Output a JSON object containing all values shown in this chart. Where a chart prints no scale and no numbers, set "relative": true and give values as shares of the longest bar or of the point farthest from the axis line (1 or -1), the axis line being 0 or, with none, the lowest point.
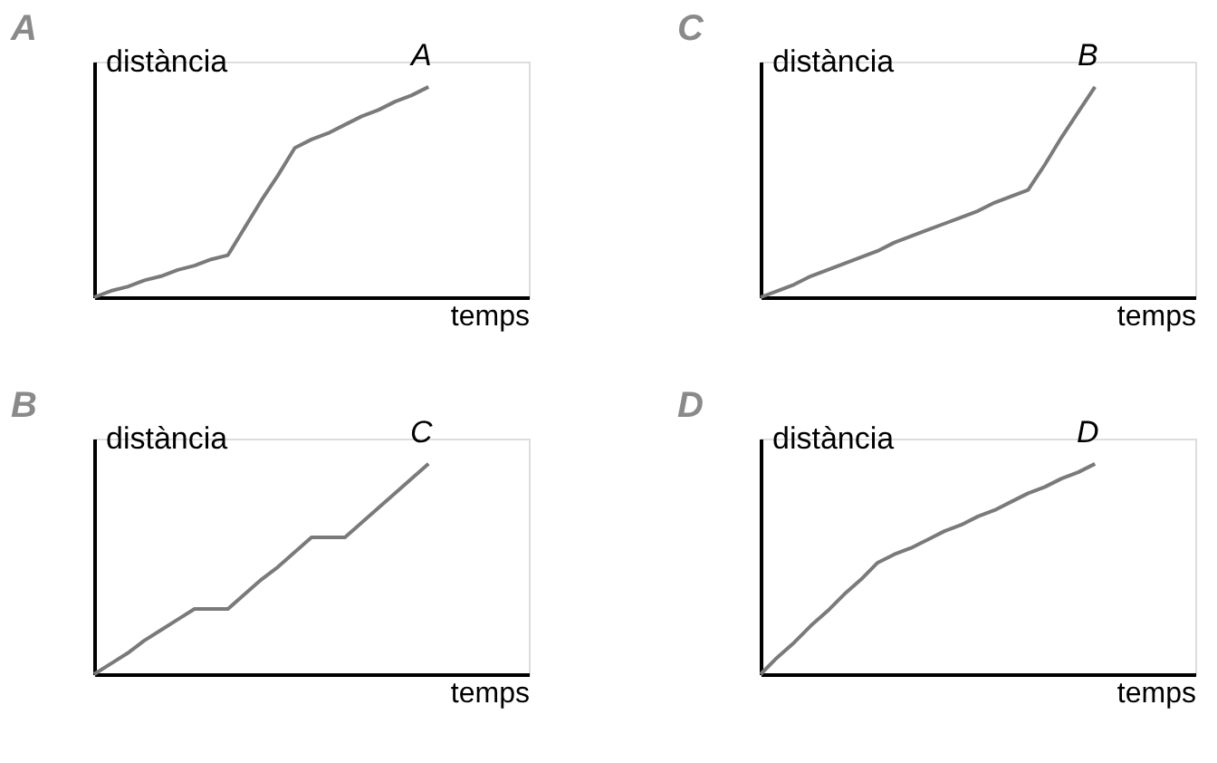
{
  "chart_data": [
    {
      "type": "line",
      "title": "A",
      "xlabel": "temps",
      "ylabel": "distància",
      "relative": true,
      "tick_labels": false,
      "grid": false,
      "categories": [
        null,
        null,
        null,
        null,
        null,
        null,
        null,
        null,
        null,
        null,
        null,
        null,
        null,
        null,
        null,
        null,
        null,
        null,
        null,
        null,
        null
      ],
      "series": [
        {
          "name": "A",
          "color": "#7a7a7a",
          "values": [
            0,
            0.03,
            0.05,
            0.08,
            0.1,
            0.13,
            0.15,
            0.18,
            0.2,
            0.33,
            0.46,
            0.58,
            0.71,
            0.75,
            0.78,
            0.82,
            0.86,
            0.89,
            0.93,
            0.96,
            1
          ]
        }
      ]
    },
    {
      "type": "line",
      "title": "C",
      "xlabel": "temps",
      "ylabel": "distància",
      "relative": true,
      "tick_labels": false,
      "grid": false,
      "categories": [
        null,
        null,
        null,
        null,
        null,
        null,
        null,
        null,
        null,
        null,
        null,
        null,
        null,
        null,
        null,
        null,
        null,
        null,
        null,
        null,
        null
      ],
      "series": [
        {
          "name": "B",
          "color": "#7a7a7a",
          "values": [
            0,
            0.03,
            0.06,
            0.1,
            0.13,
            0.16,
            0.19,
            0.22,
            0.26,
            0.29,
            0.32,
            0.35,
            0.38,
            0.41,
            0.45,
            0.48,
            0.51,
            0.63,
            0.76,
            0.88,
            1
          ]
        }
      ]
    },
    {
      "type": "line",
      "title": "B",
      "xlabel": "temps",
      "ylabel": "distància",
      "relative": true,
      "tick_labels": false,
      "grid": false,
      "categories": [
        null,
        null,
        null,
        null,
        null,
        null,
        null,
        null,
        null,
        null,
        null,
        null,
        null,
        null,
        null,
        null,
        null,
        null,
        null,
        null,
        null
      ],
      "series": [
        {
          "name": "C",
          "color": "#7a7a7a",
          "values": [
            0,
            0.05,
            0.1,
            0.16,
            0.21,
            0.26,
            0.31,
            0.31,
            0.31,
            0.38,
            0.45,
            0.51,
            0.58,
            0.65,
            0.65,
            0.65,
            0.72,
            0.79,
            0.86,
            0.93,
            1
          ]
        }
      ]
    },
    {
      "type": "line",
      "title": "D",
      "xlabel": "temps",
      "ylabel": "distància",
      "relative": true,
      "tick_labels": false,
      "grid": false,
      "categories": [
        null,
        null,
        null,
        null,
        null,
        null,
        null,
        null,
        null,
        null,
        null,
        null,
        null,
        null,
        null,
        null,
        null,
        null,
        null,
        null,
        null
      ],
      "series": [
        {
          "name": "D",
          "color": "#7a7a7a",
          "values": [
            0,
            0.08,
            0.15,
            0.23,
            0.3,
            0.38,
            0.45,
            0.53,
            0.57,
            0.6,
            0.64,
            0.68,
            0.71,
            0.75,
            0.78,
            0.82,
            0.86,
            0.89,
            0.93,
            0.96,
            1
          ]
        }
      ]
    }
  ]
}
